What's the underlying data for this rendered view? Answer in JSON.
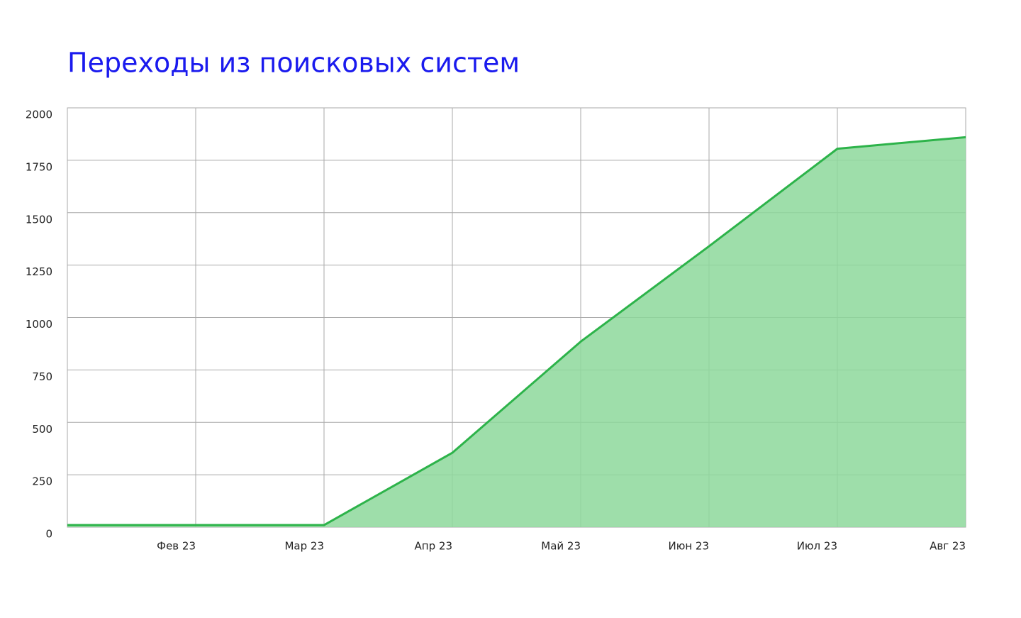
{
  "chart_data": {
    "type": "area",
    "title": "Переходы из поисковых систем",
    "categories": [
      null,
      "Фев 23",
      "Мар 23",
      "Апр 23",
      "Май 23",
      "Июн 23",
      "Июл 23",
      "Авг 23"
    ],
    "values": [
      10,
      10,
      10,
      355,
      885,
      1340,
      1805,
      1860
    ],
    "color": "#2db34a",
    "fill_color": "#8dd89b",
    "ylim": [
      0,
      2000
    ],
    "yticks": [
      0,
      250,
      500,
      750,
      1000,
      1250,
      1500,
      1750,
      2000
    ],
    "grid": true
  }
}
